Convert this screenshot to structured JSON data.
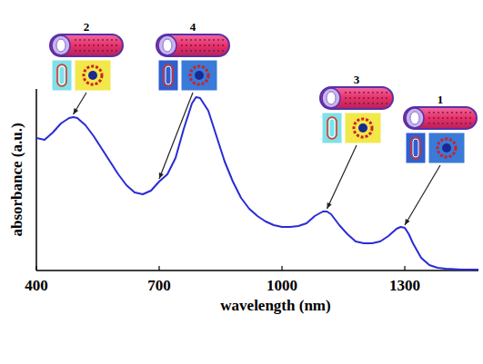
{
  "chart_data": {
    "type": "line",
    "x_label": "wavelength (nm)",
    "y_label": "absorbance (a.u.)",
    "x": [
      400,
      420,
      440,
      460,
      480,
      490,
      500,
      520,
      540,
      560,
      580,
      600,
      620,
      640,
      660,
      680,
      700,
      720,
      740,
      760,
      780,
      790,
      800,
      820,
      840,
      860,
      880,
      900,
      920,
      940,
      960,
      980,
      1000,
      1020,
      1040,
      1060,
      1080,
      1100,
      1110,
      1120,
      1140,
      1160,
      1180,
      1200,
      1220,
      1240,
      1260,
      1280,
      1290,
      1300,
      1310,
      1320,
      1340,
      1360,
      1380,
      1400,
      1440,
      1480
    ],
    "series": [
      {
        "name": "absorbance",
        "color": "#2a2ad6",
        "values": [
          0.73,
          0.72,
          0.76,
          0.81,
          0.84,
          0.845,
          0.84,
          0.8,
          0.74,
          0.67,
          0.6,
          0.53,
          0.47,
          0.43,
          0.42,
          0.44,
          0.49,
          0.53,
          0.62,
          0.78,
          0.92,
          0.955,
          0.95,
          0.88,
          0.74,
          0.6,
          0.49,
          0.4,
          0.34,
          0.3,
          0.27,
          0.25,
          0.24,
          0.24,
          0.245,
          0.26,
          0.3,
          0.325,
          0.325,
          0.31,
          0.25,
          0.2,
          0.16,
          0.15,
          0.15,
          0.16,
          0.19,
          0.23,
          0.24,
          0.235,
          0.2,
          0.15,
          0.07,
          0.03,
          0.015,
          0.01,
          0.005,
          0.005
        ]
      }
    ],
    "xlim": [
      400,
      1480
    ],
    "xticks": [
      400,
      700,
      1000,
      1300
    ],
    "ylim": [
      0,
      1
    ],
    "tick_labels": "x",
    "grid": false,
    "annotations": [
      {
        "text": "2",
        "x": 490,
        "y": 0.845
      },
      {
        "text": "4",
        "x": 700,
        "y": 0.49
      },
      {
        "text": "3",
        "x": 1110,
        "y": 0.325
      },
      {
        "text": "1",
        "x": 1300,
        "y": 0.235
      }
    ]
  }
}
